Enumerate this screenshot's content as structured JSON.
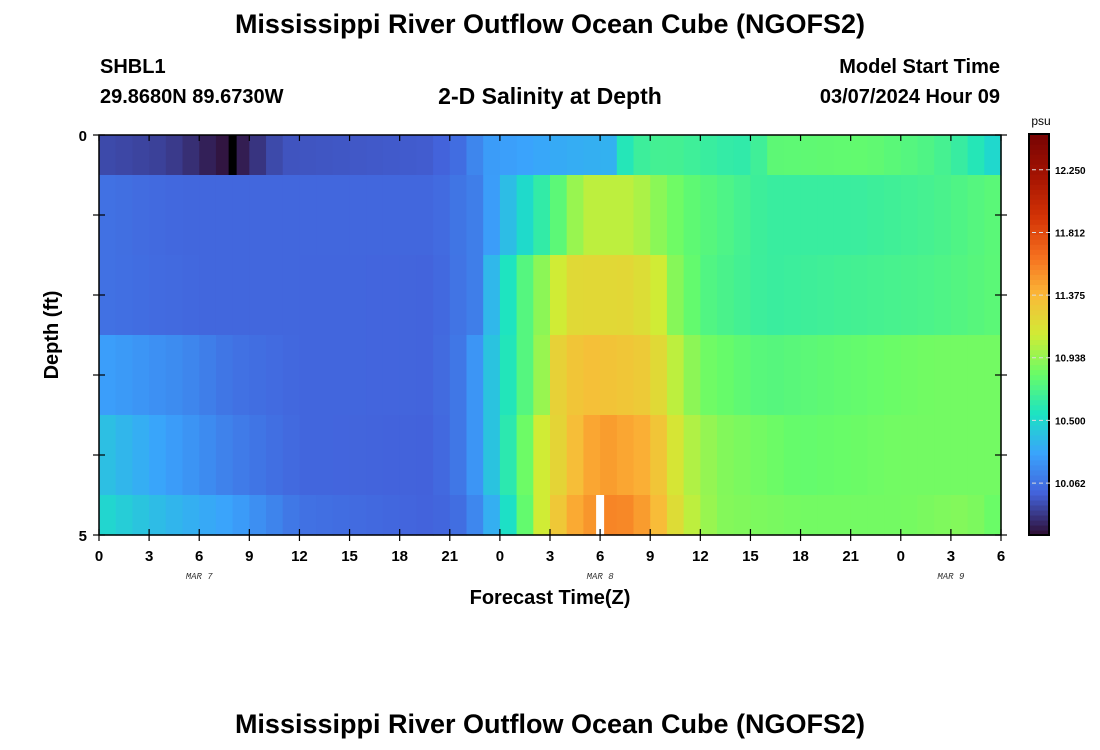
{
  "header": {
    "title": "Mississippi River Outflow Ocean Cube (NGOFS2)",
    "station_id": "SHBL1",
    "station_coords": "29.8680N  89.6730W",
    "subtitle": "2-D Salinity at Depth",
    "model_start_label": "Model Start Time",
    "model_start_value": "03/07/2024 Hour 09"
  },
  "footer": {
    "title_repeat": "Mississippi River Outflow Ocean Cube (NGOFS2)"
  },
  "chart_data": {
    "type": "heatmap",
    "title": "2-D Salinity at Depth",
    "xlabel": "Forecast Time(Z)",
    "ylabel": "Depth (ft)",
    "x_tick_labels": [
      "0",
      "3",
      "6",
      "9",
      "12",
      "15",
      "18",
      "21",
      "0",
      "3",
      "6",
      "9",
      "12",
      "15",
      "18",
      "21",
      "0",
      "3",
      "6"
    ],
    "x_day_labels": [
      {
        "label": "MAR 7",
        "at_tick": 2
      },
      {
        "label": "MAR 8",
        "at_tick": 10
      },
      {
        "label": "MAR 9",
        "at_tick": 17
      }
    ],
    "x_range_hours": [
      0,
      54
    ],
    "y_tick_labels": [
      "0",
      "5"
    ],
    "y_range_ft": [
      0,
      5
    ],
    "colorbar": {
      "unit": "psu",
      "min": 9.7,
      "max": 12.5,
      "tick_values": [
        "10.062",
        "10.500",
        "10.938",
        "11.375",
        "11.812",
        "12.250"
      ]
    },
    "rows": [
      {
        "depth_range": [
          0,
          0.5
        ],
        "keyframes": [
          [
            0,
            9.9
          ],
          [
            4,
            9.86
          ],
          [
            6,
            9.78
          ],
          [
            7,
            9.72
          ],
          [
            8,
            9.7
          ],
          [
            9,
            9.78
          ],
          [
            10,
            9.86
          ],
          [
            11,
            9.93
          ],
          [
            20,
            9.96
          ],
          [
            22,
            10.05
          ],
          [
            23,
            10.22
          ],
          [
            28,
            10.3
          ],
          [
            30.5,
            10.32
          ],
          [
            31,
            10.5
          ],
          [
            32,
            10.65
          ],
          [
            34,
            10.7
          ],
          [
            38,
            10.62
          ],
          [
            39,
            10.62
          ],
          [
            40.5,
            10.78
          ],
          [
            46,
            10.8
          ],
          [
            50,
            10.72
          ],
          [
            52,
            10.62
          ],
          [
            54,
            10.45
          ]
        ]
      },
      {
        "depth_range": [
          0.5,
          1.5
        ],
        "keyframes": [
          [
            0,
            10.05
          ],
          [
            5,
            10.0
          ],
          [
            10,
            10.0
          ],
          [
            20,
            10.0
          ],
          [
            22.5,
            10.1
          ],
          [
            24,
            10.3
          ],
          [
            25,
            10.45
          ],
          [
            26,
            10.55
          ],
          [
            27,
            10.7
          ],
          [
            28,
            10.85
          ],
          [
            29,
            11.05
          ],
          [
            32,
            11.05
          ],
          [
            33,
            10.95
          ],
          [
            35,
            10.8
          ],
          [
            40,
            10.65
          ],
          [
            45,
            10.65
          ],
          [
            50,
            10.7
          ],
          [
            54,
            10.78
          ]
        ]
      },
      {
        "depth_range": [
          1.5,
          2.5
        ],
        "keyframes": [
          [
            0,
            10.05
          ],
          [
            6,
            10.0
          ],
          [
            12,
            10.0
          ],
          [
            20,
            9.99
          ],
          [
            22.5,
            10.1
          ],
          [
            23.5,
            10.35
          ],
          [
            24.5,
            10.55
          ],
          [
            25.5,
            10.75
          ],
          [
            27,
            11.0
          ],
          [
            28,
            11.2
          ],
          [
            32,
            11.22
          ],
          [
            33.5,
            11.1
          ],
          [
            34.5,
            10.9
          ],
          [
            36,
            10.75
          ],
          [
            40,
            10.65
          ],
          [
            44,
            10.68
          ],
          [
            50,
            10.72
          ],
          [
            54,
            10.78
          ]
        ]
      },
      {
        "depth_range": [
          2.5,
          3.5
        ],
        "keyframes": [
          [
            0,
            10.25
          ],
          [
            5,
            10.15
          ],
          [
            8,
            10.05
          ],
          [
            12,
            10.0
          ],
          [
            20,
            9.99
          ],
          [
            22,
            10.1
          ],
          [
            23.5,
            10.4
          ],
          [
            25,
            10.65
          ],
          [
            26.5,
            10.95
          ],
          [
            27.5,
            11.25
          ],
          [
            29,
            11.35
          ],
          [
            33,
            11.28
          ],
          [
            34.5,
            11.05
          ],
          [
            36,
            10.85
          ],
          [
            40,
            10.75
          ],
          [
            45,
            10.8
          ],
          [
            50,
            10.85
          ],
          [
            54,
            10.85
          ]
        ]
      },
      {
        "depth_range": [
          3.5,
          4.5
        ],
        "keyframes": [
          [
            0,
            10.4
          ],
          [
            4,
            10.25
          ],
          [
            8,
            10.1
          ],
          [
            12,
            10.0
          ],
          [
            20,
            9.98
          ],
          [
            22,
            10.1
          ],
          [
            23.5,
            10.4
          ],
          [
            25,
            10.7
          ],
          [
            26.5,
            11.1
          ],
          [
            28,
            11.3
          ],
          [
            30,
            11.5
          ],
          [
            33,
            11.4
          ],
          [
            35,
            11.05
          ],
          [
            37,
            10.9
          ],
          [
            42,
            10.8
          ],
          [
            48,
            10.85
          ],
          [
            54,
            10.85
          ]
        ]
      },
      {
        "depth_range": [
          4.5,
          5.0
        ],
        "keyframes": [
          [
            0,
            10.5
          ],
          [
            4,
            10.35
          ],
          [
            8,
            10.25
          ],
          [
            12,
            10.05
          ],
          [
            20,
            9.98
          ],
          [
            22,
            10.05
          ],
          [
            24,
            10.4
          ],
          [
            25,
            10.65
          ],
          [
            26.5,
            11.1
          ],
          [
            28,
            11.4
          ],
          [
            30,
            11.55
          ],
          [
            31,
            11.6
          ],
          [
            33,
            11.45
          ],
          [
            35,
            11.1
          ],
          [
            37,
            10.9
          ],
          [
            42,
            10.85
          ],
          [
            48,
            10.85
          ],
          [
            52,
            10.9
          ],
          [
            54,
            10.8
          ]
        ]
      }
    ],
    "markers": [
      {
        "row": 0,
        "x_hours": 8.0,
        "color": "#000000"
      },
      {
        "row": 5,
        "x_hours": 30.0,
        "color": "#ffffff"
      }
    ]
  }
}
